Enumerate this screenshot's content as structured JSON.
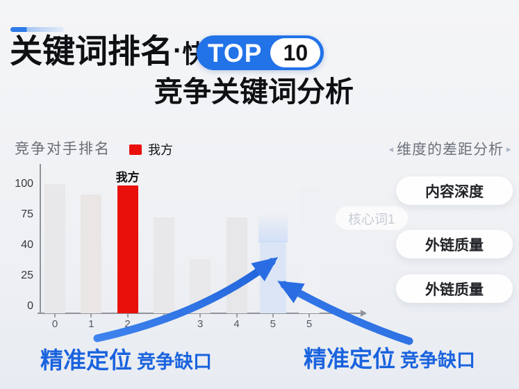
{
  "header": {
    "title_main": "关键词排名",
    "title_dot": "·",
    "title_fast": "快速",
    "badge_top": "TOP",
    "badge_num": "10",
    "subtitle": "竞争关键词分析"
  },
  "chart": {
    "label": "竞争对手排名",
    "legend_label": "我方"
  },
  "chart_data": {
    "type": "bar",
    "title": "竞争对手排名",
    "categories": [
      "0",
      "1",
      "2",
      "",
      "3",
      "4",
      "5",
      "5"
    ],
    "values": [
      100,
      92,
      99,
      74,
      42,
      74,
      56,
      97
    ],
    "bar_colors": [
      "#e8e7e9",
      "#eae6e6",
      "#e9100b",
      "#e8e7e9",
      "#e9e8ea",
      "#e7e6e8",
      "#dbe5f6",
      "#eef0f3"
    ],
    "highlight_index": 2,
    "highlight_label": "我方",
    "accent_bar_index": 6,
    "ytick_labels": [
      "100",
      "75",
      "40",
      "25",
      "0"
    ],
    "ylim": [
      0,
      100
    ],
    "legend": [
      {
        "label": "我方",
        "color": "#e9100b"
      }
    ],
    "grid": false,
    "legend_position": "top"
  },
  "panel": {
    "left_arrow": "◂",
    "right_arrow": "▸",
    "heading": "维度的差距分析",
    "ghost_tag": "核心词1",
    "pills": [
      "内容深度",
      "外链质量",
      "外链质量"
    ]
  },
  "callouts": {
    "left": {
      "strong": "精准定位",
      "rest": "竞争缺口"
    },
    "right": {
      "strong": "精准定位",
      "rest": "竞争缺口"
    }
  },
  "colors": {
    "accent_blue": "#2273e8",
    "arrow_blue": "#2a6de2",
    "our_red": "#e9100b",
    "callout_blue": "#1a63de"
  }
}
